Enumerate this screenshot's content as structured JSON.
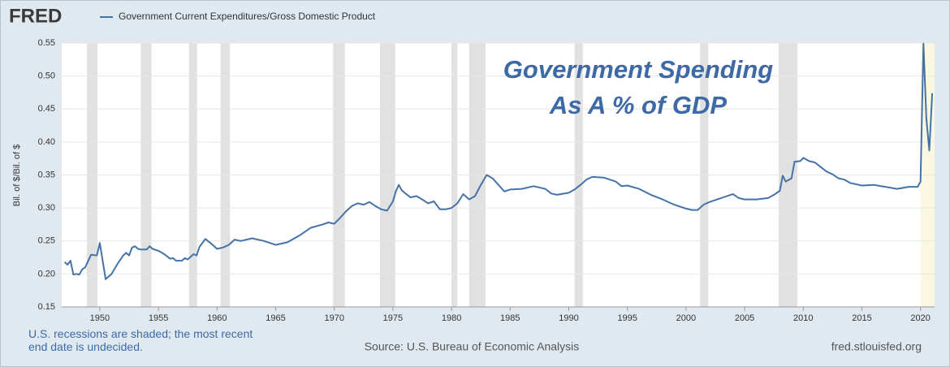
{
  "chart_data": {
    "type": "line",
    "logo": "FRED",
    "legend_label": "Government Current Expenditures/Gross Domestic Product",
    "y_label": "Bil. of $/Bil. of $",
    "annotation": [
      "Government Spending",
      "As A % of GDP"
    ],
    "recession_note": "U.S. recessions are shaded; the most recent end date is undecided.",
    "source": "Source: U.S. Bureau of Economic Analysis",
    "site": "fred.stlouisfed.org",
    "xlim": [
      1946.75,
      2021.2
    ],
    "ylim": [
      0.15,
      0.55
    ],
    "xticks": [
      1950,
      1955,
      1960,
      1965,
      1970,
      1975,
      1980,
      1985,
      1990,
      1995,
      2000,
      2005,
      2010,
      2015,
      2020
    ],
    "yticks": [
      0.15,
      {
        "value": 0.2,
        "label": "0.20"
      },
      0.25,
      {
        "value": 0.3,
        "label": "0.30"
      },
      0.35,
      {
        "value": 0.4,
        "label": "0.40"
      },
      0.45,
      {
        "value": 0.5,
        "label": "0.50"
      },
      0.55
    ],
    "grid": true,
    "recession_color": "#e1e1e1",
    "undecided_color": "#fbf8e1",
    "recessions": [
      [
        1948.9,
        1949.8
      ],
      [
        1953.5,
        1954.4
      ],
      [
        1957.6,
        1958.3
      ],
      [
        1960.3,
        1961.1
      ],
      [
        1969.9,
        1970.9
      ],
      [
        1973.9,
        1975.2
      ],
      [
        1980.0,
        1980.5
      ],
      [
        1981.5,
        1982.9
      ],
      [
        1990.5,
        1991.2
      ],
      [
        2001.2,
        2001.9
      ],
      [
        2007.9,
        2009.5
      ],
      [
        2020.0,
        null
      ]
    ],
    "x": [
      1947,
      1947.25,
      1947.5,
      1947.75,
      1948,
      1948.25,
      1948.5,
      1948.75,
      1949.25,
      1949.75,
      1950,
      1950.5,
      1951,
      1951.5,
      1952,
      1952.25,
      1952.5,
      1952.75,
      1953,
      1953.25,
      1953.5,
      1954,
      1954.25,
      1954.5,
      1955,
      1955.5,
      1956,
      1956.25,
      1956.5,
      1957,
      1957.25,
      1957.5,
      1958,
      1958.25,
      1958.5,
      1959,
      1959.5,
      1960,
      1960.5,
      1961,
      1961.5,
      1962,
      1963,
      1964,
      1964.5,
      1965,
      1966,
      1967,
      1968,
      1969,
      1969.5,
      1970,
      1970.5,
      1971,
      1971.5,
      1972,
      1972.5,
      1973,
      1973.5,
      1974,
      1974.5,
      1975,
      1975.25,
      1975.5,
      1975.75,
      1976,
      1976.5,
      1977,
      1977.5,
      1978,
      1978.5,
      1979,
      1979.5,
      1980,
      1980.5,
      1981,
      1981.5,
      1982,
      1982.5,
      1983,
      1983.5,
      1984,
      1984.5,
      1985,
      1986,
      1987,
      1988,
      1988.5,
      1989,
      1990,
      1990.5,
      1991,
      1991.5,
      1992,
      1993,
      1994,
      1994.5,
      1995,
      1996,
      1997,
      1998,
      1999,
      2000,
      2000.5,
      2001,
      2001.5,
      2002,
      2003,
      2004,
      2004.5,
      2005,
      2006,
      2007,
      2007.5,
      2008,
      2008.25,
      2008.5,
      2009,
      2009.25,
      2009.75,
      2010,
      2010.5,
      2011,
      2011.5,
      2012,
      2012.5,
      2013,
      2013.5,
      2014,
      2015,
      2016,
      2017,
      2018,
      2019,
      2019.75,
      2020,
      2020.25,
      2020.5,
      2020.75,
      2021
    ],
    "series": [
      {
        "name": "Government Current Expenditures/Gross Domestic Product",
        "color": "#4572a7",
        "values": [
          0.218,
          0.214,
          0.22,
          0.199,
          0.2,
          0.199,
          0.207,
          0.21,
          0.229,
          0.228,
          0.247,
          0.192,
          0.2,
          0.215,
          0.228,
          0.232,
          0.228,
          0.24,
          0.242,
          0.238,
          0.237,
          0.237,
          0.242,
          0.238,
          0.235,
          0.23,
          0.223,
          0.224,
          0.22,
          0.22,
          0.224,
          0.222,
          0.23,
          0.228,
          0.241,
          0.253,
          0.246,
          0.238,
          0.24,
          0.244,
          0.252,
          0.25,
          0.254,
          0.25,
          0.247,
          0.244,
          0.248,
          0.258,
          0.27,
          0.275,
          0.278,
          0.276,
          0.285,
          0.295,
          0.303,
          0.307,
          0.305,
          0.309,
          0.303,
          0.298,
          0.296,
          0.31,
          0.325,
          0.335,
          0.327,
          0.323,
          0.316,
          0.318,
          0.313,
          0.307,
          0.31,
          0.298,
          0.298,
          0.3,
          0.307,
          0.321,
          0.313,
          0.318,
          0.335,
          0.35,
          0.345,
          0.335,
          0.325,
          0.328,
          0.329,
          0.333,
          0.329,
          0.322,
          0.32,
          0.323,
          0.328,
          0.335,
          0.343,
          0.347,
          0.346,
          0.34,
          0.333,
          0.334,
          0.329,
          0.32,
          0.313,
          0.305,
          0.299,
          0.297,
          0.297,
          0.305,
          0.309,
          0.315,
          0.321,
          0.315,
          0.313,
          0.313,
          0.315,
          0.32,
          0.326,
          0.349,
          0.34,
          0.345,
          0.37,
          0.371,
          0.376,
          0.371,
          0.369,
          0.362,
          0.355,
          0.351,
          0.345,
          0.343,
          0.338,
          0.334,
          0.335,
          0.332,
          0.329,
          0.332,
          0.332,
          0.34,
          0.549,
          0.435,
          0.387,
          0.474
        ]
      }
    ]
  }
}
